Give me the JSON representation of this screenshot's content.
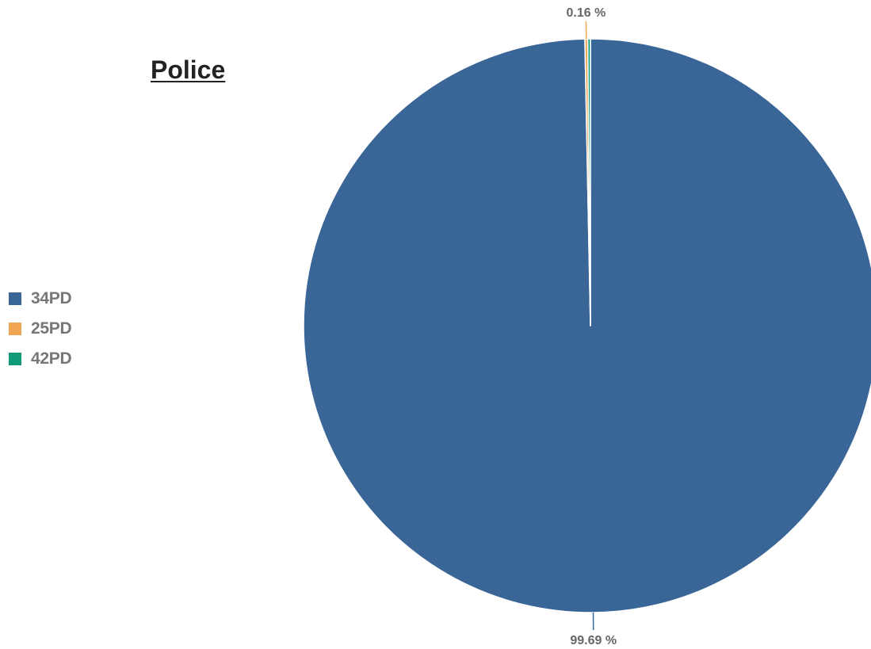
{
  "chart_data": {
    "type": "pie",
    "title": "Police",
    "legend_position": "left",
    "slices": [
      {
        "name": "34PD",
        "value": 99.69,
        "color": "#3a6597"
      },
      {
        "name": "25PD",
        "value": 0.16,
        "color": "#f0a553"
      },
      {
        "name": "42PD",
        "value": 0.15,
        "color": "#0e9a78"
      }
    ],
    "data_labels": [
      "99.69 %",
      "0.16 %"
    ]
  }
}
